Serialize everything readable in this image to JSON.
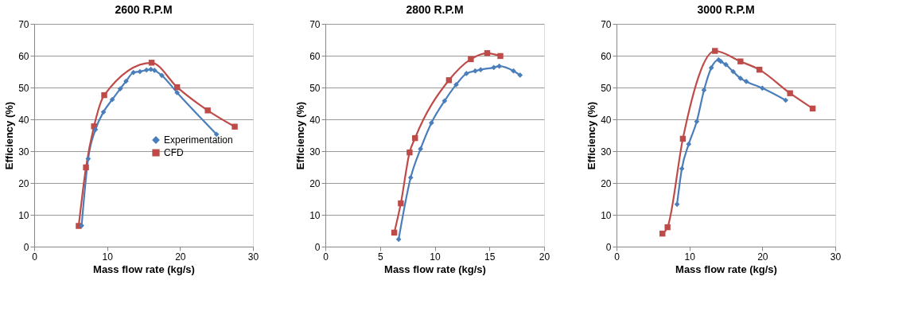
{
  "chart_data": [
    {
      "type": "line",
      "title": "2600 R.P.M",
      "xlabel": "Mass flow rate (kg/s)",
      "ylabel": "Efficiency (%)",
      "xlim": [
        0,
        30
      ],
      "xticks": [
        0,
        10,
        20,
        30
      ],
      "ylim": [
        0,
        70
      ],
      "yticks": [
        0,
        10,
        20,
        30,
        40,
        50,
        60,
        70
      ],
      "grid": "y",
      "legend": "right",
      "series": [
        {
          "name": "Experimentation",
          "color": "#4a7ebb",
          "marker": "diamond",
          "x": [
            6.5,
            7.4,
            8.4,
            9.5,
            10.7,
            11.8,
            12.6,
            13.6,
            14.5,
            15.4,
            16.0,
            16.5,
            17.5,
            19.6,
            25.0
          ],
          "values": [
            6.6,
            27.6,
            36.8,
            42.3,
            46.2,
            49.6,
            52,
            54.7,
            55,
            55.5,
            55.7,
            55.4,
            53.8,
            48.4,
            35.3
          ]
        },
        {
          "name": "CFD",
          "color": "#be4b48",
          "marker": "square",
          "x": [
            6.1,
            7.1,
            8.2,
            9.6,
            16.1,
            19.6,
            23.8,
            27.5
          ],
          "values": [
            6.5,
            24.9,
            37.8,
            47.6,
            57.8,
            50.1,
            42.8,
            37.7
          ]
        }
      ]
    },
    {
      "type": "line",
      "title": "2800 R.P.M",
      "xlabel": "Mass flow rate (kg/s)",
      "ylabel": "Efficiency (%)",
      "xlim": [
        0,
        20
      ],
      "xticks": [
        0,
        5,
        10,
        15,
        20
      ],
      "ylim": [
        0,
        70
      ],
      "yticks": [
        0,
        10,
        20,
        30,
        40,
        50,
        60,
        70
      ],
      "grid": "y",
      "legend": "right",
      "series": [
        {
          "name": "Experimentation",
          "color": "#4a7ebb",
          "marker": "diamond",
          "x": [
            6.7,
            7.8,
            8.7,
            9.7,
            10.9,
            11.96,
            12.9,
            13.7,
            14.2,
            15.4,
            15.9,
            17.2,
            17.8
          ],
          "values": [
            2.3,
            21.7,
            30.7,
            38.9,
            45.8,
            50.9,
            54.4,
            55.2,
            55.6,
            56.3,
            56.7,
            55.2,
            53.9
          ]
        },
        {
          "name": "CFD",
          "color": "#be4b48",
          "marker": "square",
          "x": [
            6.3,
            6.9,
            7.7,
            8.2,
            11.3,
            13.3,
            14.8,
            16.0
          ],
          "values": [
            4.4,
            13.6,
            29.6,
            34.1,
            52.3,
            58.9,
            60.8,
            59.9
          ]
        }
      ]
    },
    {
      "type": "line",
      "title": "3000 R.P.M",
      "xlabel": "Mass flow rate (kg/s)",
      "ylabel": "Efficiency (%)",
      "xlim": [
        0,
        30
      ],
      "xticks": [
        0,
        10,
        20,
        30
      ],
      "ylim": [
        0,
        70
      ],
      "yticks": [
        0,
        10,
        20,
        30,
        40,
        50,
        60,
        70
      ],
      "grid": "y",
      "legend": "right",
      "series": [
        {
          "name": "Experimentation",
          "color": "#4a7ebb",
          "marker": "diamond",
          "x": [
            8.3,
            8.96,
            9.9,
            11.0,
            12.0,
            13.0,
            14.0,
            14.3,
            15.0,
            16.0,
            17.0,
            17.8,
            20.0,
            23.2
          ],
          "values": [
            13.3,
            24.5,
            32.2,
            39.3,
            49.2,
            56.2,
            58.7,
            58.2,
            57.2,
            55.0,
            52.9,
            51.9,
            49.8,
            46.0
          ]
        },
        {
          "name": "CFD",
          "color": "#be4b48",
          "marker": "square",
          "x": [
            6.3,
            7.0,
            9.1,
            13.5,
            17.0,
            19.6,
            23.8,
            26.9
          ],
          "values": [
            4.1,
            6.1,
            33.9,
            61.5,
            58.2,
            55.6,
            48.2,
            43.4
          ]
        }
      ]
    }
  ]
}
